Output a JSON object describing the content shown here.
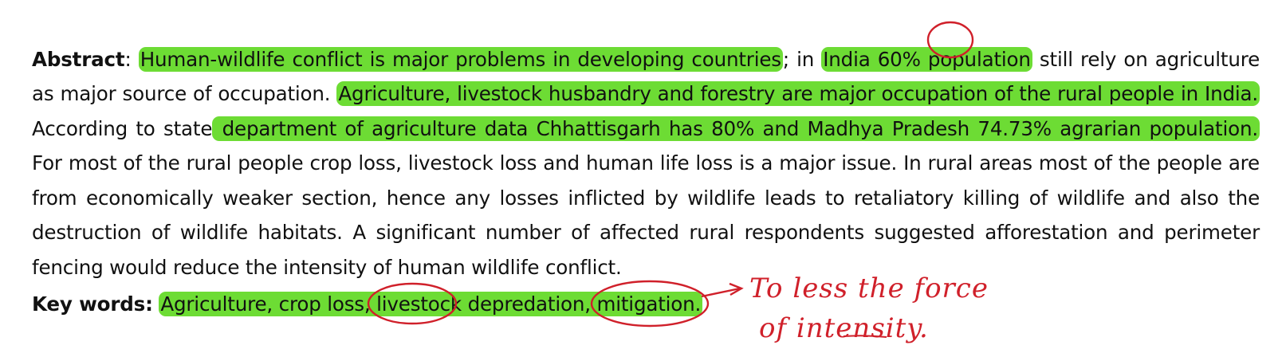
{
  "abstract": {
    "label": "Abstract",
    "colon": ":",
    "hl1": "Human-wildlife conflict is major problems in developing countries",
    "t1": "; in ",
    "hl2": "India 60% population",
    "t2": " still rely on agriculture as major source of occupation. ",
    "hl3": "Agriculture, livestock husbandry and forestry are major occupation of the rural people in India.",
    "t3": " According to state",
    "hl4": " department of agriculture data Chhattisgarh has 80% and Madhya Pradesh 74.73% agrarian population.",
    "t4": " For most of the rural people crop loss, livestock loss and human life loss is a major issue. In rural areas most of the people are from economically weaker section, hence any losses inflicted by wildlife leads to retaliatory killing of wildlife and also the destruction of wildlife habitats. A significant number of affected rural respondents suggested afforestation and perimeter fencing would reduce the intensity of human wildlife conflict."
  },
  "keywords": {
    "label": "Key words:",
    "hl": "Agriculture, crop loss, livestock depredation, mitigation."
  },
  "annotation": {
    "line1": "To less the force",
    "line2": "of intensity."
  },
  "colors": {
    "highlight": "#6ddc34",
    "ink": "#d0202a",
    "text": "#111111"
  }
}
